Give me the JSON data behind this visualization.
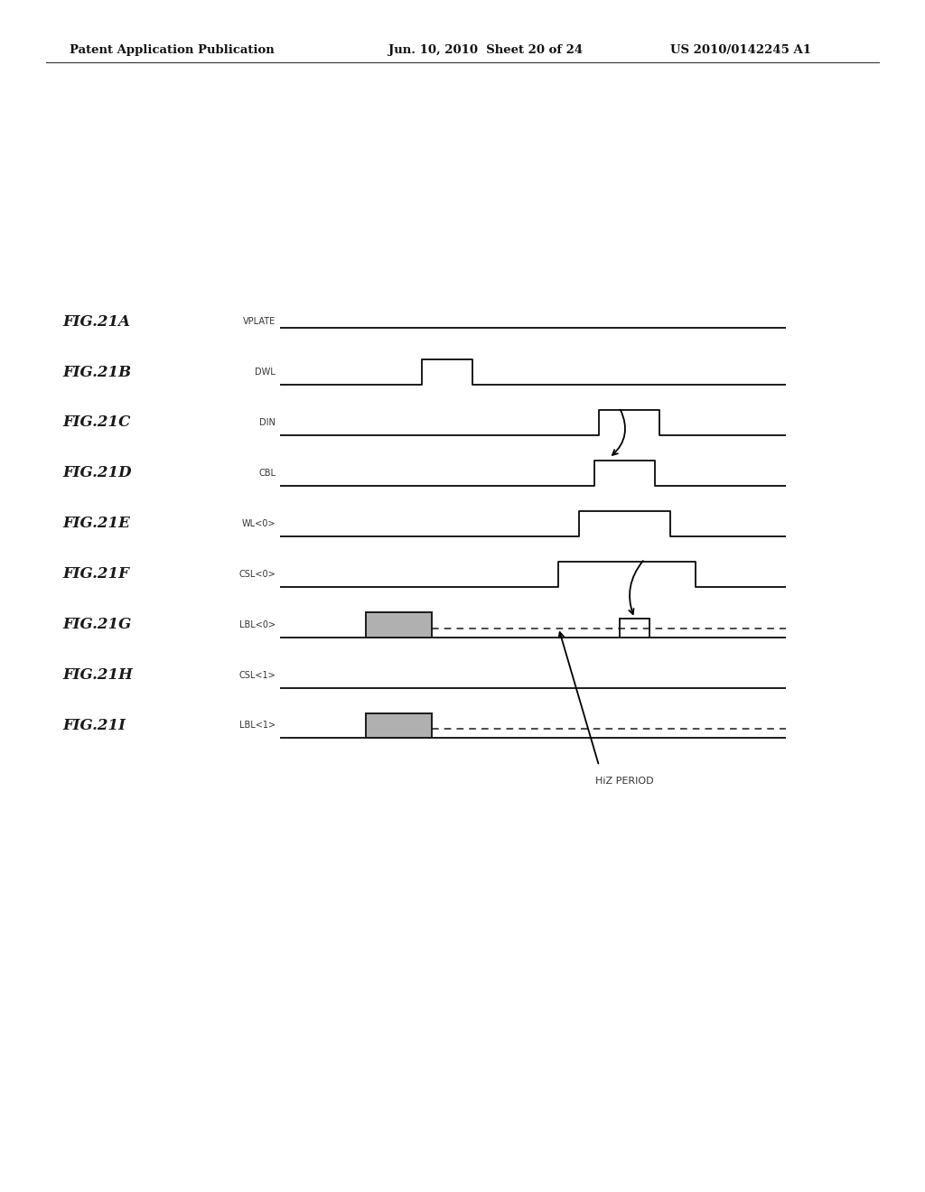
{
  "bg_color": "#ffffff",
  "header_text": "Patent Application Publication",
  "header_date": "Jun. 10, 2010  Sheet 20 of 24",
  "header_patent": "US 2010/0142245 A1",
  "fig_labels": [
    "FIG.21A",
    "FIG.21B",
    "FIG.21C",
    "FIG.21D",
    "FIG.21E",
    "FIG.21F",
    "FIG.21G",
    "FIG.21H",
    "FIG.21I"
  ],
  "sig_labels": [
    "VPLATE",
    "DWL",
    "DIN",
    "CBL",
    "WL<0>",
    "CSL<0>",
    "LBL<0>",
    "CSL<1>",
    "LBL<1>"
  ],
  "waveform_color": "#1a1a1a",
  "shade_color": "#b0b0b0",
  "hiz_label": "HiZ PERIOD"
}
